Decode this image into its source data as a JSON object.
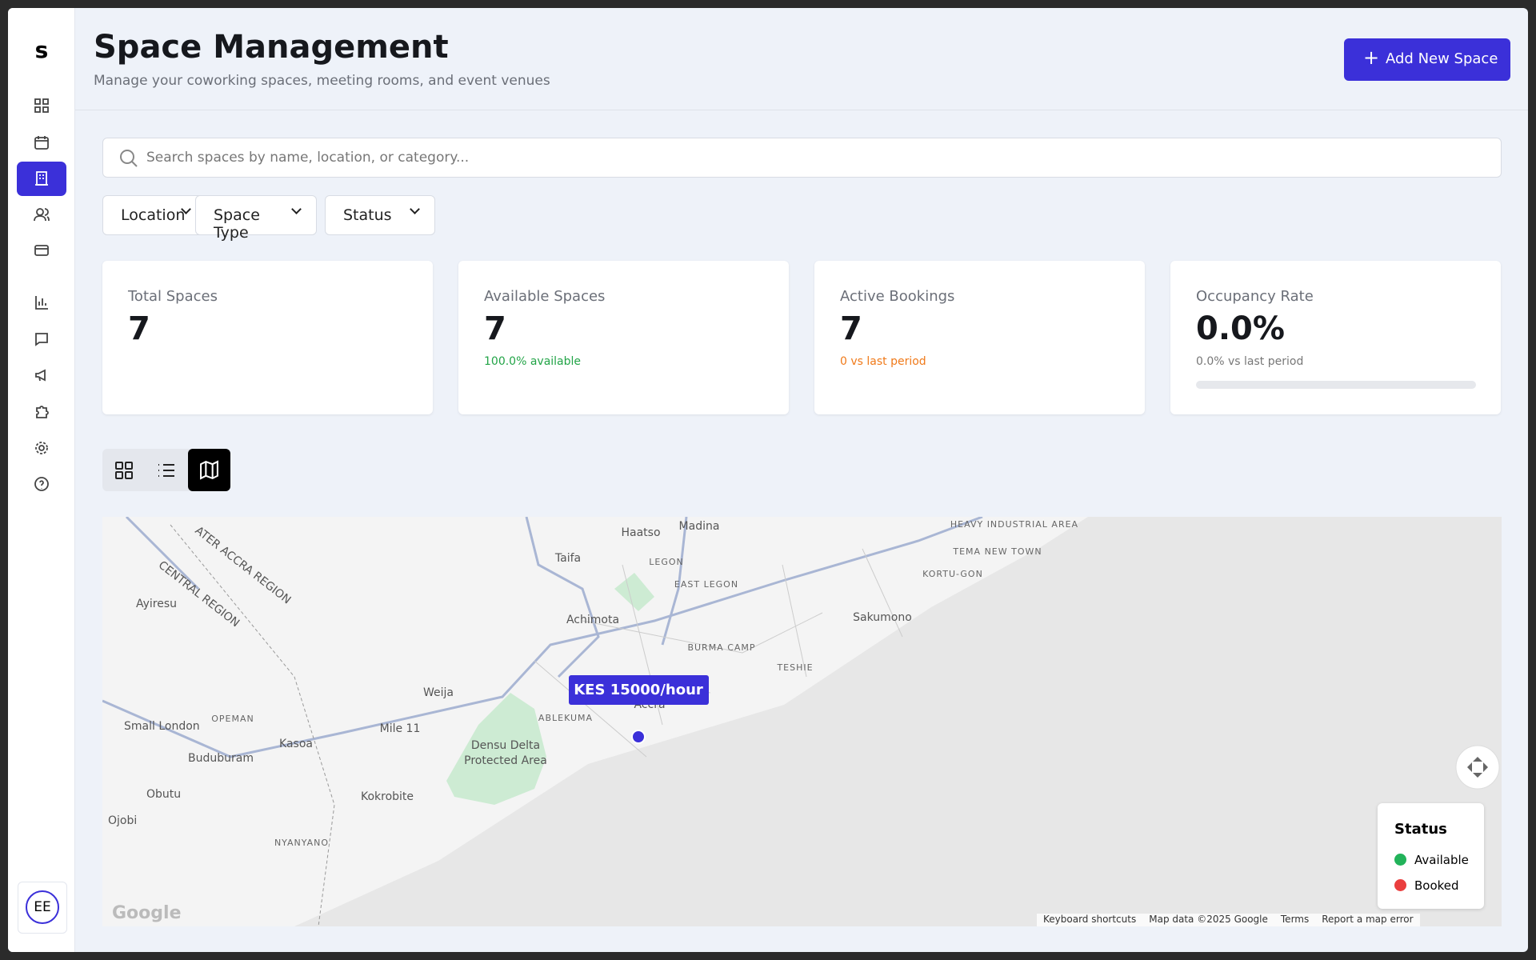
{
  "sidebar": {
    "logo": "s",
    "avatar": "EE"
  },
  "header": {
    "title": "Space Management",
    "subtitle": "Manage your coworking spaces, meeting rooms, and event venues",
    "add_button": "Add New Space"
  },
  "search": {
    "placeholder": "Search spaces by name, location, or category..."
  },
  "filters": [
    "Location",
    "Space Type",
    "Status"
  ],
  "stats": [
    {
      "label": "Total Spaces",
      "value": "7"
    },
    {
      "label": "Available Spaces",
      "value": "7",
      "note": "100.0% available"
    },
    {
      "label": "Active Bookings",
      "value": "7",
      "note": "0 vs last period"
    },
    {
      "label": "Occupancy Rate",
      "value": "0.0%",
      "note": "0.0% vs last period"
    }
  ],
  "map": {
    "labels": [
      "Haatso",
      "Madina",
      "Taifa",
      "LEGON",
      "EAST LEGON",
      "Achimota",
      "Sakumono",
      "BURMA CAMP",
      "TESHIE",
      "Weija",
      "ABLEKUMA",
      "Accra",
      "Densu Delta",
      "Protected Area",
      "Ayiresu",
      "CENTRAL REGION",
      "ATER ACCRA REGION",
      "OPEMAN",
      "Small London",
      "Mile 11",
      "Kasoa",
      "Buduburam",
      "Obutu",
      "Kokrobite",
      "Ojobi",
      "NYANYANO",
      "HEAVY INDUSTRIAL AREA",
      "TEMA NEW TOWN",
      "KORTU-GON"
    ],
    "marker": "KES 15000/hour",
    "legend": {
      "title": "Status",
      "items": [
        "Available",
        "Booked"
      ]
    },
    "footer": [
      "Keyboard shortcuts",
      "Map data ©2025 Google",
      "Terms",
      "Report a map error"
    ]
  }
}
